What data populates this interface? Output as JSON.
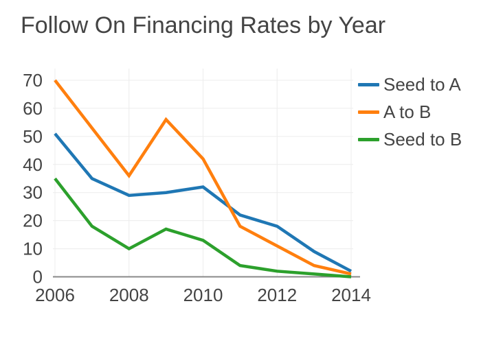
{
  "chart_data": {
    "type": "line",
    "title": "Follow On Financing Rates by Year",
    "x": [
      2006,
      2007,
      2008,
      2009,
      2010,
      2011,
      2012,
      2013,
      2014
    ],
    "series": [
      {
        "name": "Seed to A",
        "color": "#1f77b4",
        "values": [
          51,
          35,
          29,
          30,
          32,
          22,
          18,
          9,
          2
        ]
      },
      {
        "name": "A to B",
        "color": "#ff7f0e",
        "values": [
          70,
          53,
          36,
          56,
          42,
          18,
          11,
          4,
          1
        ]
      },
      {
        "name": "Seed to B",
        "color": "#2ca02c",
        "values": [
          35,
          18,
          10,
          17,
          13,
          4,
          2,
          1,
          0
        ]
      }
    ],
    "xlabel": "",
    "ylabel": "",
    "xlim": [
      2006,
      2014
    ],
    "ylim": [
      0,
      70
    ],
    "x_ticks": [
      "2006",
      "2008",
      "2010",
      "2012",
      "2014"
    ],
    "y_ticks": [
      "0",
      "10",
      "20",
      "30",
      "40",
      "50",
      "60",
      "70"
    ],
    "grid": true,
    "legend_position": "right",
    "line_width": 4.5
  },
  "colors": {
    "background": "#ffffff",
    "title_text": "#444444",
    "tick_text": "#444444",
    "grid_line": "#ececec",
    "zero_line": "#888888"
  }
}
